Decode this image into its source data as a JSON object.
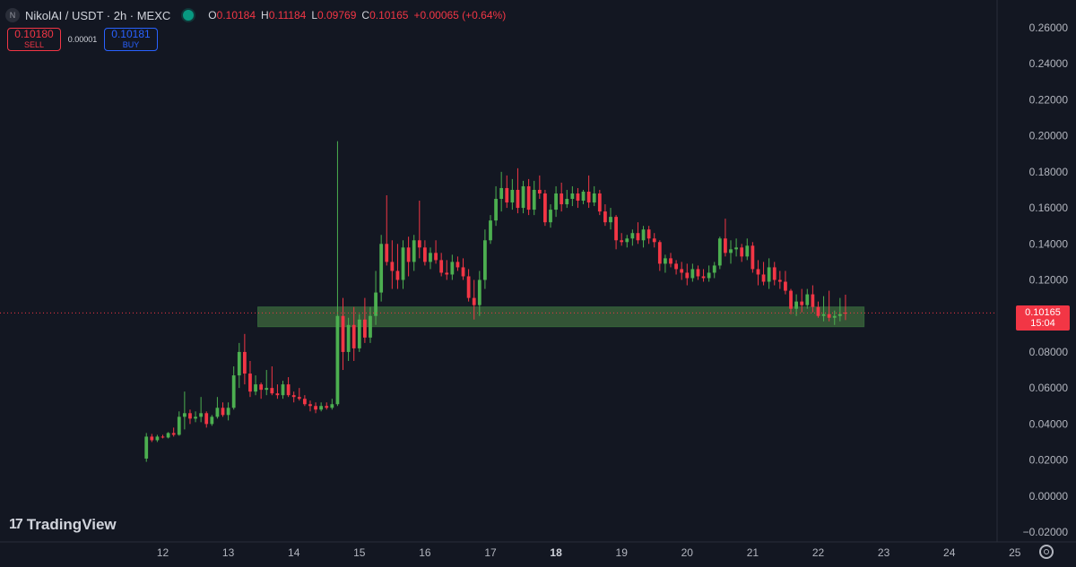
{
  "header": {
    "logo_letter": "N",
    "symbol_title": "NikolAI / USDT · 2h · MEXC",
    "ohlc": [
      {
        "key": "O",
        "value": "0.10184"
      },
      {
        "key": "H",
        "value": "0.11184"
      },
      {
        "key": "L",
        "value": "0.09769"
      },
      {
        "key": "C",
        "value": "0.10165"
      }
    ],
    "change": "+0.00065 (+0.64%)"
  },
  "trade": {
    "sell_price": "0.10180",
    "sell_label": "SELL",
    "spread": "0.00001",
    "buy_price": "0.10181",
    "buy_label": "BUY"
  },
  "branding": {
    "logo_mark": "17",
    "name": "TradingView"
  },
  "last_price": {
    "value": "0.10165",
    "countdown": "15:04"
  },
  "colors": {
    "background": "#131722",
    "up": "#4caf50",
    "down": "#f23645",
    "zone_fill": "#3a5f3a",
    "axis_text": "#b2b5be"
  },
  "chart_data": {
    "type": "candlestick",
    "grid": false,
    "ylim": [
      -0.02,
      0.26
    ],
    "y_ticks": [
      "0.26000",
      "0.24000",
      "0.22000",
      "0.20000",
      "0.18000",
      "0.16000",
      "0.14000",
      "0.12000",
      "0.10000",
      "0.08000",
      "0.06000",
      "0.04000",
      "0.02000",
      "0.00000",
      "−0.02000"
    ],
    "y_tick_values": [
      0.26,
      0.24,
      0.22,
      0.2,
      0.18,
      0.16,
      0.14,
      0.12,
      0.1,
      0.08,
      0.06,
      0.04,
      0.02,
      0.0,
      -0.02
    ],
    "x_ticks": [
      {
        "label": "12",
        "day": 12,
        "bold": false
      },
      {
        "label": "13",
        "day": 13,
        "bold": false
      },
      {
        "label": "14",
        "day": 14,
        "bold": false
      },
      {
        "label": "15",
        "day": 15,
        "bold": false
      },
      {
        "label": "16",
        "day": 16,
        "bold": false
      },
      {
        "label": "17",
        "day": 17,
        "bold": false
      },
      {
        "label": "18",
        "day": 18,
        "bold": true
      },
      {
        "label": "19",
        "day": 19,
        "bold": false
      },
      {
        "label": "20",
        "day": 20,
        "bold": false
      },
      {
        "label": "21",
        "day": 21,
        "bold": false
      },
      {
        "label": "22",
        "day": 22,
        "bold": false
      },
      {
        "label": "23",
        "day": 23,
        "bold": false
      },
      {
        "label": "24",
        "day": 24,
        "bold": false
      },
      {
        "label": "25",
        "day": 25,
        "bold": false
      }
    ],
    "x_range_days": [
      11.05,
      25.2
    ],
    "zone": {
      "day_start": 13.45,
      "day_end": 22.7,
      "low": 0.094,
      "high": 0.105
    },
    "last_price_value": 0.10165,
    "first_candle_day": 11.75,
    "candle_interval_days": 0.08333,
    "candles": [
      [
        0.0208,
        0.035,
        0.019,
        0.033
      ],
      [
        0.033,
        0.0345,
        0.03,
        0.031
      ],
      [
        0.031,
        0.034,
        0.03,
        0.033
      ],
      [
        0.033,
        0.034,
        0.032,
        0.0325
      ],
      [
        0.0325,
        0.0355,
        0.032,
        0.035
      ],
      [
        0.035,
        0.038,
        0.033,
        0.034
      ],
      [
        0.034,
        0.047,
        0.0335,
        0.044
      ],
      [
        0.044,
        0.058,
        0.037,
        0.046
      ],
      [
        0.046,
        0.048,
        0.04,
        0.043
      ],
      [
        0.043,
        0.047,
        0.041,
        0.044
      ],
      [
        0.044,
        0.055,
        0.041,
        0.046
      ],
      [
        0.046,
        0.047,
        0.038,
        0.04
      ],
      [
        0.04,
        0.045,
        0.039,
        0.044
      ],
      [
        0.044,
        0.055,
        0.043,
        0.049
      ],
      [
        0.049,
        0.052,
        0.044,
        0.045
      ],
      [
        0.045,
        0.052,
        0.042,
        0.049
      ],
      [
        0.049,
        0.072,
        0.048,
        0.067
      ],
      [
        0.067,
        0.085,
        0.06,
        0.08
      ],
      [
        0.08,
        0.09,
        0.062,
        0.068
      ],
      [
        0.068,
        0.075,
        0.055,
        0.058
      ],
      [
        0.058,
        0.067,
        0.056,
        0.062
      ],
      [
        0.062,
        0.063,
        0.054,
        0.059
      ],
      [
        0.059,
        0.07,
        0.056,
        0.06
      ],
      [
        0.06,
        0.072,
        0.056,
        0.057
      ],
      [
        0.057,
        0.062,
        0.054,
        0.056
      ],
      [
        0.056,
        0.064,
        0.054,
        0.062
      ],
      [
        0.062,
        0.066,
        0.055,
        0.056
      ],
      [
        0.056,
        0.058,
        0.052,
        0.055
      ],
      [
        0.055,
        0.06,
        0.053,
        0.054
      ],
      [
        0.054,
        0.056,
        0.05,
        0.051
      ],
      [
        0.051,
        0.053,
        0.047,
        0.05
      ],
      [
        0.05,
        0.052,
        0.046,
        0.048
      ],
      [
        0.048,
        0.052,
        0.047,
        0.05
      ],
      [
        0.05,
        0.052,
        0.048,
        0.049
      ],
      [
        0.049,
        0.054,
        0.048,
        0.051
      ],
      [
        0.051,
        0.197,
        0.05,
        0.1
      ],
      [
        0.1,
        0.11,
        0.07,
        0.08
      ],
      [
        0.08,
        0.099,
        0.075,
        0.095
      ],
      [
        0.095,
        0.105,
        0.075,
        0.082
      ],
      [
        0.082,
        0.101,
        0.08,
        0.098
      ],
      [
        0.098,
        0.11,
        0.085,
        0.088
      ],
      [
        0.088,
        0.105,
        0.085,
        0.1
      ],
      [
        0.1,
        0.125,
        0.095,
        0.113
      ],
      [
        0.113,
        0.145,
        0.108,
        0.14
      ],
      [
        0.14,
        0.167,
        0.128,
        0.13
      ],
      [
        0.13,
        0.142,
        0.115,
        0.125
      ],
      [
        0.125,
        0.14,
        0.115,
        0.12
      ],
      [
        0.12,
        0.142,
        0.115,
        0.138
      ],
      [
        0.138,
        0.144,
        0.122,
        0.13
      ],
      [
        0.13,
        0.145,
        0.125,
        0.142
      ],
      [
        0.142,
        0.164,
        0.132,
        0.138
      ],
      [
        0.138,
        0.142,
        0.128,
        0.13
      ],
      [
        0.13,
        0.138,
        0.126,
        0.135
      ],
      [
        0.135,
        0.142,
        0.129,
        0.131
      ],
      [
        0.131,
        0.135,
        0.122,
        0.124
      ],
      [
        0.124,
        0.131,
        0.12,
        0.123
      ],
      [
        0.123,
        0.134,
        0.12,
        0.13
      ],
      [
        0.13,
        0.133,
        0.125,
        0.127
      ],
      [
        0.127,
        0.132,
        0.12,
        0.122
      ],
      [
        0.122,
        0.126,
        0.108,
        0.11
      ],
      [
        0.11,
        0.12,
        0.098,
        0.106
      ],
      [
        0.106,
        0.125,
        0.1,
        0.12
      ],
      [
        0.12,
        0.148,
        0.115,
        0.142
      ],
      [
        0.142,
        0.156,
        0.14,
        0.153
      ],
      [
        0.153,
        0.172,
        0.15,
        0.165
      ],
      [
        0.165,
        0.18,
        0.158,
        0.171
      ],
      [
        0.171,
        0.178,
        0.16,
        0.163
      ],
      [
        0.163,
        0.176,
        0.159,
        0.17
      ],
      [
        0.17,
        0.182,
        0.157,
        0.16
      ],
      [
        0.16,
        0.175,
        0.157,
        0.172
      ],
      [
        0.172,
        0.176,
        0.156,
        0.159
      ],
      [
        0.159,
        0.175,
        0.156,
        0.17
      ],
      [
        0.17,
        0.178,
        0.165,
        0.168
      ],
      [
        0.168,
        0.17,
        0.15,
        0.152
      ],
      [
        0.152,
        0.162,
        0.149,
        0.159
      ],
      [
        0.159,
        0.172,
        0.155,
        0.168
      ],
      [
        0.168,
        0.174,
        0.158,
        0.162
      ],
      [
        0.162,
        0.17,
        0.16,
        0.165
      ],
      [
        0.165,
        0.172,
        0.161,
        0.168
      ],
      [
        0.168,
        0.171,
        0.16,
        0.164
      ],
      [
        0.164,
        0.17,
        0.162,
        0.169
      ],
      [
        0.169,
        0.178,
        0.16,
        0.163
      ],
      [
        0.163,
        0.172,
        0.161,
        0.168
      ],
      [
        0.168,
        0.17,
        0.156,
        0.158
      ],
      [
        0.158,
        0.162,
        0.15,
        0.152
      ],
      [
        0.152,
        0.16,
        0.148,
        0.155
      ],
      [
        0.155,
        0.156,
        0.137,
        0.142
      ],
      [
        0.142,
        0.146,
        0.139,
        0.141
      ],
      [
        0.141,
        0.145,
        0.138,
        0.143
      ],
      [
        0.143,
        0.148,
        0.139,
        0.146
      ],
      [
        0.146,
        0.152,
        0.14,
        0.142
      ],
      [
        0.142,
        0.15,
        0.138,
        0.148
      ],
      [
        0.148,
        0.15,
        0.14,
        0.143
      ],
      [
        0.143,
        0.146,
        0.138,
        0.141
      ],
      [
        0.141,
        0.142,
        0.125,
        0.129
      ],
      [
        0.129,
        0.134,
        0.124,
        0.132
      ],
      [
        0.132,
        0.135,
        0.127,
        0.129
      ],
      [
        0.129,
        0.131,
        0.123,
        0.126
      ],
      [
        0.126,
        0.13,
        0.12,
        0.124
      ],
      [
        0.124,
        0.129,
        0.117,
        0.121
      ],
      [
        0.121,
        0.129,
        0.119,
        0.126
      ],
      [
        0.126,
        0.128,
        0.12,
        0.122
      ],
      [
        0.122,
        0.126,
        0.119,
        0.121
      ],
      [
        0.121,
        0.128,
        0.119,
        0.124
      ],
      [
        0.124,
        0.13,
        0.121,
        0.128
      ],
      [
        0.128,
        0.144,
        0.126,
        0.143
      ],
      [
        0.143,
        0.154,
        0.133,
        0.135
      ],
      [
        0.135,
        0.142,
        0.129,
        0.137
      ],
      [
        0.137,
        0.143,
        0.133,
        0.138
      ],
      [
        0.138,
        0.14,
        0.13,
        0.133
      ],
      [
        0.133,
        0.143,
        0.131,
        0.139
      ],
      [
        0.139,
        0.141,
        0.124,
        0.126
      ],
      [
        0.126,
        0.131,
        0.117,
        0.123
      ],
      [
        0.123,
        0.13,
        0.117,
        0.119
      ],
      [
        0.119,
        0.132,
        0.115,
        0.127
      ],
      [
        0.127,
        0.13,
        0.117,
        0.12
      ],
      [
        0.12,
        0.125,
        0.115,
        0.119
      ],
      [
        0.119,
        0.125,
        0.112,
        0.114
      ],
      [
        0.114,
        0.115,
        0.101,
        0.104
      ],
      [
        0.104,
        0.112,
        0.1,
        0.108
      ],
      [
        0.108,
        0.115,
        0.102,
        0.106
      ],
      [
        0.106,
        0.115,
        0.104,
        0.112
      ],
      [
        0.112,
        0.117,
        0.102,
        0.105
      ],
      [
        0.105,
        0.108,
        0.099,
        0.1
      ],
      [
        0.1,
        0.111,
        0.097,
        0.101
      ],
      [
        0.101,
        0.114,
        0.097,
        0.099
      ],
      [
        0.099,
        0.103,
        0.095,
        0.1
      ],
      [
        0.1,
        0.11,
        0.097,
        0.101
      ],
      [
        0.1018,
        0.1118,
        0.0977,
        0.1017
      ]
    ]
  }
}
